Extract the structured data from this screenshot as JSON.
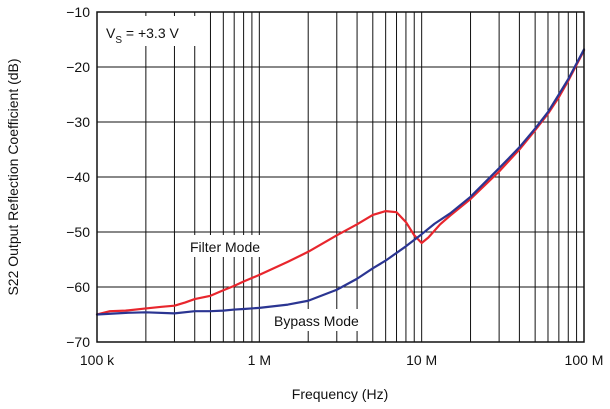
{
  "chart_data": {
    "type": "line",
    "title": "",
    "xlabel": "Frequency (Hz)",
    "ylabel": "S22 Output Reflection Coefficient (dB)",
    "x_scale": "log",
    "xlim": [
      100000,
      100000000
    ],
    "ylim": [
      -70,
      -10
    ],
    "grid": true,
    "x_ticks": [
      {
        "value": 100000,
        "label": "100 k"
      },
      {
        "value": 1000000,
        "label": "1 M"
      },
      {
        "value": 10000000,
        "label": "10 M"
      },
      {
        "value": 100000000,
        "label": "100 M"
      }
    ],
    "y_ticks": [
      {
        "value": -10,
        "label": "−10"
      },
      {
        "value": -20,
        "label": "−20"
      },
      {
        "value": -30,
        "label": "−30"
      },
      {
        "value": -40,
        "label": "−40"
      },
      {
        "value": -50,
        "label": "−50"
      },
      {
        "value": -60,
        "label": "−60"
      },
      {
        "value": -70,
        "label": "−70"
      }
    ],
    "condition": {
      "main": "V",
      "sub": "S",
      "rest": " = +3.3 V"
    },
    "series": [
      {
        "name": "Filter Mode",
        "color": "#e8262d",
        "points": [
          [
            100000,
            -65
          ],
          [
            120000,
            -64.4
          ],
          [
            150000,
            -64.3
          ],
          [
            200000,
            -63.9
          ],
          [
            250000,
            -63.6
          ],
          [
            300000,
            -63.4
          ],
          [
            350000,
            -62.8
          ],
          [
            400000,
            -62.2
          ],
          [
            500000,
            -61.6
          ],
          [
            600000,
            -60.6
          ],
          [
            700000,
            -59.8
          ],
          [
            800000,
            -59.0
          ],
          [
            1000000,
            -57.8
          ],
          [
            1500000,
            -55.4
          ],
          [
            2000000,
            -53.6
          ],
          [
            3000000,
            -50.6
          ],
          [
            4000000,
            -48.6
          ],
          [
            5000000,
            -46.9
          ],
          [
            6000000,
            -46.2
          ],
          [
            7000000,
            -46.4
          ],
          [
            8000000,
            -48.2
          ],
          [
            9000000,
            -50.6
          ],
          [
            10000000,
            -52.0
          ],
          [
            11000000,
            -51.0
          ],
          [
            13000000,
            -48.6
          ],
          [
            15000000,
            -47.0
          ],
          [
            20000000,
            -44.0
          ],
          [
            30000000,
            -39.0
          ],
          [
            40000000,
            -35.0
          ],
          [
            50000000,
            -31.5
          ],
          [
            60000000,
            -28.5
          ],
          [
            70000000,
            -25.5
          ],
          [
            80000000,
            -22.5
          ],
          [
            100000000,
            -17.0
          ]
        ]
      },
      {
        "name": "Bypass Mode",
        "color": "#2b3592",
        "points": [
          [
            100000,
            -65
          ],
          [
            150000,
            -64.7
          ],
          [
            200000,
            -64.6
          ],
          [
            300000,
            -64.8
          ],
          [
            400000,
            -64.4
          ],
          [
            500000,
            -64.4
          ],
          [
            600000,
            -64.3
          ],
          [
            700000,
            -64.1
          ],
          [
            800000,
            -64.0
          ],
          [
            1000000,
            -63.8
          ],
          [
            1500000,
            -63.2
          ],
          [
            2000000,
            -62.5
          ],
          [
            3000000,
            -60.5
          ],
          [
            4000000,
            -58.5
          ],
          [
            5000000,
            -56.6
          ],
          [
            6000000,
            -55.2
          ],
          [
            8000000,
            -52.6
          ],
          [
            10000000,
            -50.4
          ],
          [
            12000000,
            -48.5
          ],
          [
            15000000,
            -46.6
          ],
          [
            20000000,
            -43.6
          ],
          [
            30000000,
            -38.4
          ],
          [
            40000000,
            -34.6
          ],
          [
            50000000,
            -31.2
          ],
          [
            60000000,
            -28.2
          ],
          [
            70000000,
            -25.0
          ],
          [
            80000000,
            -22.2
          ],
          [
            100000000,
            -16.8
          ]
        ]
      }
    ]
  }
}
